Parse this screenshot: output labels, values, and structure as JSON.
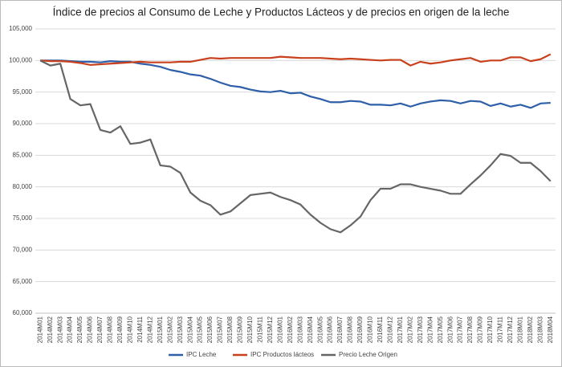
{
  "chart_data": {
    "type": "line",
    "title": "Índice de precios al Consumo de Leche y Productos Lácteos y de precios en origen de la leche",
    "categories": [
      "2014M01",
      "2014M02",
      "2014M03",
      "2014M04",
      "2014M05",
      "2014M06",
      "2014M07",
      "2014M08",
      "2014M09",
      "2014M10",
      "2014M11",
      "2014M12",
      "2015M01",
      "2015M02",
      "2015M03",
      "2015M04",
      "2015M05",
      "2015M06",
      "2015M07",
      "2015M08",
      "2015M09",
      "2015M10",
      "2015M11",
      "2015M12",
      "2016M01",
      "2016M02",
      "2016M03",
      "2016M04",
      "2016M05",
      "2016M06",
      "2016M07",
      "2016M08",
      "2016M09",
      "2016M10",
      "2016M11",
      "2016M12",
      "2017M01",
      "2017M02",
      "2017M03",
      "2017M04",
      "2017M05",
      "2017M06",
      "2017M07",
      "2017M08",
      "2017M09",
      "2017M10",
      "2017M11",
      "2017M12",
      "2018M01",
      "2018M02",
      "2018M03",
      "2018M04"
    ],
    "series": [
      {
        "name": "IPC Leche",
        "color": "#2e5fa8",
        "values": [
          100,
          100,
          100,
          99.9,
          99.8,
          99.8,
          99.7,
          99.9,
          99.8,
          99.8,
          99.5,
          99.3,
          99.0,
          98.5,
          98.2,
          97.8,
          97.6,
          97.1,
          96.5,
          96.0,
          95.8,
          95.4,
          95.1,
          95.0,
          95.2,
          94.8,
          94.9,
          94.3,
          93.9,
          93.4,
          93.4,
          93.6,
          93.5,
          93.0,
          93.0,
          92.9,
          93.2,
          92.7,
          93.2,
          93.5,
          93.7,
          93.6,
          93.2,
          93.6,
          93.5,
          92.8,
          93.2,
          92.7,
          93.0,
          92.5,
          93.2,
          93.3
        ]
      },
      {
        "name": "IPC Productos lácteos",
        "color": "#c9401c",
        "values": [
          100,
          99.9,
          99.9,
          99.8,
          99.6,
          99.3,
          99.4,
          99.5,
          99.6,
          99.7,
          99.8,
          99.7,
          99.7,
          99.7,
          99.8,
          99.8,
          100.1,
          100.4,
          100.3,
          100.4,
          100.4,
          100.4,
          100.4,
          100.4,
          100.6,
          100.5,
          100.4,
          100.4,
          100.4,
          100.3,
          100.2,
          100.3,
          100.2,
          100.1,
          100.0,
          100.1,
          100.1,
          99.2,
          99.8,
          99.5,
          99.7,
          100.0,
          100.2,
          100.4,
          99.8,
          100.0,
          100.0,
          100.5,
          100.5,
          99.9,
          100.2,
          101.0
        ]
      },
      {
        "name": "Precio Leche Origen",
        "color": "#666666",
        "values": [
          100,
          99.2,
          99.5,
          93.9,
          92.9,
          93.1,
          89.0,
          88.6,
          89.6,
          86.8,
          87.0,
          87.5,
          83.4,
          83.2,
          82.2,
          79.1,
          77.8,
          77.1,
          75.6,
          76.1,
          77.4,
          78.7,
          78.9,
          79.1,
          78.4,
          77.9,
          77.2,
          75.6,
          74.3,
          73.3,
          72.8,
          73.9,
          75.3,
          77.9,
          79.7,
          79.7,
          80.4,
          80.4,
          80.0,
          79.7,
          79.4,
          78.9,
          78.9,
          80.4,
          81.8,
          83.4,
          85.2,
          84.9,
          83.8,
          83.8,
          82.5,
          80.9
        ]
      }
    ],
    "ylim": [
      60,
      105
    ],
    "yticks": [
      {
        "value": 60,
        "label": "60,000"
      },
      {
        "value": 65,
        "label": "65,000"
      },
      {
        "value": 70,
        "label": "70,000"
      },
      {
        "value": 75,
        "label": "75,000"
      },
      {
        "value": 80,
        "label": "80,000"
      },
      {
        "value": 85,
        "label": "85,000"
      },
      {
        "value": 90,
        "label": "90,000"
      },
      {
        "value": 95,
        "label": "95,000"
      },
      {
        "value": 100,
        "label": "100,000"
      },
      {
        "value": 105,
        "label": "105,000"
      }
    ],
    "grid": true,
    "legend": "bottom"
  }
}
